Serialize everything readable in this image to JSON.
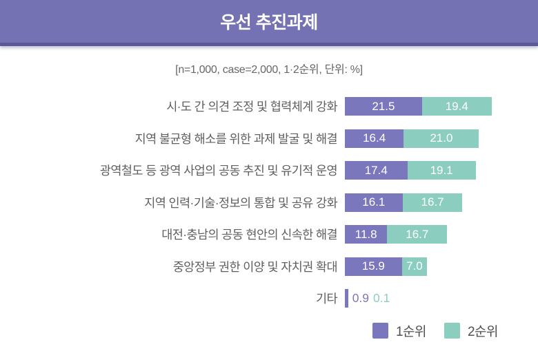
{
  "banner": {
    "title": "우선 추진과제",
    "background": "#7472B3",
    "edge": "#5C5994"
  },
  "subtitle": "[n=1,000, case=2,000, 1·2순위, 단위: %]",
  "colors": {
    "rank1": "#7B77BD",
    "rank2": "#8BCEC0",
    "label_text": "#5f5f5f",
    "value_text_inside": "#ffffff"
  },
  "chart_data": {
    "type": "bar",
    "orientation": "horizontal",
    "stacked": true,
    "title": "우선 추진과제",
    "subtitle": "[n=1,000, case=2,000, 1·2순위, 단위: %]",
    "unit": "%",
    "grid": false,
    "axes_shown": false,
    "value_labels_shown": true,
    "legend_position": "bottom-right",
    "categories": [
      "시·도 간 의견 조정 및 협력체계 강화",
      "지역 불균형 해소를 위한 과제 발굴 및 해결",
      "광역철도 등 광역 사업의 공동 추진 및 유기적 운영",
      "지역 인력·기술·정보의 통합 및 공유 강화",
      "대전·충남의 공동 현안의 신속한 해결",
      "중앙정부 권한 이양 및 자치권 확대",
      "기타"
    ],
    "series": [
      {
        "name": "1순위",
        "color": "#7B77BD",
        "values": [
          21.5,
          16.4,
          17.4,
          16.1,
          11.8,
          15.9,
          0.9
        ]
      },
      {
        "name": "2순위",
        "color": "#8BCEC0",
        "values": [
          19.4,
          21.0,
          19.1,
          16.7,
          16.7,
          7.0,
          0.1
        ]
      }
    ]
  }
}
